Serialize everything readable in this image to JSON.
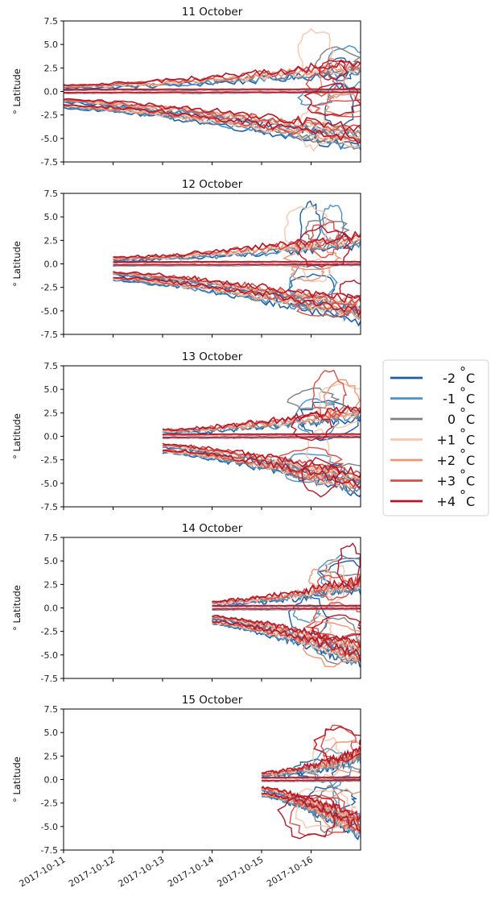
{
  "chart_data": {
    "type": "contour",
    "x_axis": {
      "range": [
        "2017-10-11",
        "2017-10-17"
      ],
      "tick_labels": [
        "2017-10-11",
        "2017-10-12",
        "2017-10-13",
        "2017-10-14",
        "2017-10-15",
        "2017-10-16"
      ]
    },
    "y_axis": {
      "label": "° Latitude",
      "range": [
        -7.5,
        7.5
      ],
      "tick_labels": [
        "7.5",
        "5.0",
        "2.5",
        "0.0",
        "-2.5",
        "-5.0",
        "-7.5"
      ]
    },
    "panels": [
      {
        "title": "11 October",
        "start_date": "2017-10-11"
      },
      {
        "title": "12 October",
        "start_date": "2017-10-12"
      },
      {
        "title": "13 October",
        "start_date": "2017-10-13"
      },
      {
        "title": "14 October",
        "start_date": "2017-10-14"
      },
      {
        "title": "15 October",
        "start_date": "2017-10-15"
      }
    ],
    "legend": {
      "placement": "right",
      "entries": [
        {
          "label": "-2$^\\circ$C",
          "text": "-2",
          "unit": "C",
          "color": "#1c5ea6"
        },
        {
          "label": "-1$^\\circ$C",
          "text": "-1",
          "unit": "C",
          "color": "#4b8fc8"
        },
        {
          "label": "0$^\\circ$C",
          "text": "0",
          "unit": "C",
          "color": "#808080"
        },
        {
          "label": "+1$^\\circ$C",
          "text": "+1",
          "unit": "C",
          "color": "#f9c6ad"
        },
        {
          "label": "+2$^\\circ$C",
          "text": "+2",
          "unit": "C",
          "color": "#f09574"
        },
        {
          "label": "+3$^\\circ$C",
          "text": "+3",
          "unit": "C",
          "color": "#d6504a"
        },
        {
          "label": "+4$^\\circ$C",
          "text": "+4",
          "unit": "C",
          "color": "#b2182b"
        }
      ]
    }
  }
}
